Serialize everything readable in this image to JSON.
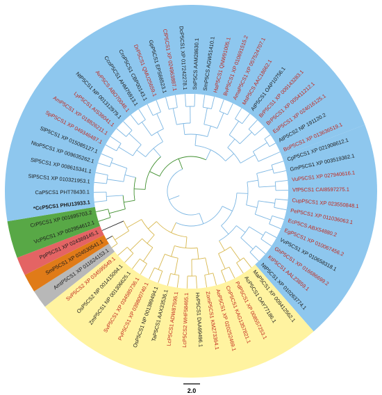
{
  "colors": {
    "blue": "#8ec7ee",
    "green": "#58a846",
    "red": "#e46464",
    "orange": "#e07b18",
    "gray": "#b8b8b8",
    "yellow": "#fff3a0",
    "blue_branch": "#7bb6e3",
    "yellow_branch": "#d8b84e",
    "green_branch": "#3f8f2e",
    "red_label": "#c0281e",
    "black_label": "#1c1c1c"
  },
  "scale_bar": {
    "label": "2.0"
  },
  "leaves": [
    {
      "label": "CpP5CS1 XP 021908612.1",
      "group": "blue",
      "red": false
    },
    {
      "label": "GmP5CS1 XP 003519362.1",
      "group": "blue",
      "red": false
    },
    {
      "label": "VuP5CS1 XP 027940616.1",
      "group": "blue",
      "red": true
    },
    {
      "label": "VfP5CS1 CAI8597275.1",
      "group": "blue",
      "red": true
    },
    {
      "label": "CupP5CS1 XP 023550848.1",
      "group": "blue",
      "red": true
    },
    {
      "label": "PeP5CS1 XP 011036063.1",
      "group": "blue",
      "red": true
    },
    {
      "label": "EcP5CS ABX54880.2",
      "group": "blue",
      "red": true
    },
    {
      "label": "EgP5CS1 XP 010067456.2",
      "group": "blue",
      "red": true
    },
    {
      "label": "VvP5CS1 XP 010658318.1",
      "group": "blue",
      "red": false
    },
    {
      "label": "GhP5CS1 XP 016686699.2",
      "group": "blue",
      "red": true
    },
    {
      "label": "KtP5CS1 AAL23859.1",
      "group": "blue",
      "red": true
    },
    {
      "label": "NtP5CS1 XP 010263774.1",
      "group": "blue",
      "red": false
    },
    {
      "label": "MaP5CS1 XP 009412562.1",
      "group": "yellow",
      "red": false
    },
    {
      "label": "AcP5CS1 OAY77186.1",
      "group": "yellow",
      "red": false
    },
    {
      "label": "PdP5CS1 XP 008557253.1",
      "group": "yellow",
      "red": true
    },
    {
      "label": "CnP5CS1 KAG1357821.1",
      "group": "yellow",
      "red": true
    },
    {
      "label": "AoP5CS1 XP 020252469.1",
      "group": "yellow",
      "red": true
    },
    {
      "label": "ZomP5CS1 KMZ73364.1",
      "group": "yellow",
      "red": true
    },
    {
      "label": "HvP5CS1 DAA99496.1",
      "group": "yellow",
      "red": false
    },
    {
      "label": "LcP5CS2 WHF58465.1",
      "group": "yellow",
      "red": true
    },
    {
      "label": "LcP5CS1 ADW87595.1",
      "group": "yellow",
      "red": true
    },
    {
      "label": "TaP5CS1 AAX33536.1",
      "group": "yellow",
      "red": false
    },
    {
      "label": "OsP5CS1 NP 001389494.1",
      "group": "yellow",
      "red": false
    },
    {
      "label": "PvP5CS1 XP 039800740.1",
      "group": "yellow",
      "red": true
    },
    {
      "label": "SvP5CS1 XP 034585736.1",
      "group": "yellow",
      "red": true
    },
    {
      "label": "ZmP5CS1 NP 001306625.1",
      "group": "yellow",
      "red": false
    },
    {
      "label": "OsP5CS2 NP 001415094.1",
      "group": "yellow",
      "red": false
    },
    {
      "label": "SvP5CS2 XP 034595549.1",
      "group": "yellow",
      "red": true
    },
    {
      "label": "AmtP5CS1 XP 011624153.1",
      "group": "gray",
      "red": false
    },
    {
      "label": "SmP5CS1 XP 024530541.1",
      "group": "orange",
      "red": false
    },
    {
      "label": "PpP5CS1 XP 024369145.1",
      "group": "red",
      "red": false
    },
    {
      "label": "VcP5CS1 XP 002954612.1",
      "group": "green",
      "red": false
    },
    {
      "label": "CrP5CS1 XP 001695703.2",
      "group": "green",
      "red": false
    },
    {
      "label": "*CcP5CS1 PHU13933.1",
      "group": "blue",
      "red": false,
      "bold": true
    },
    {
      "label": "CaP5CS1 PHT78430.1",
      "group": "blue",
      "red": false
    },
    {
      "label": "SlP5CS1 XP 010321953.1",
      "group": "blue",
      "red": false
    },
    {
      "label": "SlP5CS1 XP 008615341.1",
      "group": "blue",
      "red": false
    },
    {
      "label": "NtoP5CS1 XP 009635262.1",
      "group": "blue",
      "red": false
    },
    {
      "label": "SlP5CS1 XP 015085127.1",
      "group": "blue",
      "red": false
    },
    {
      "label": "SpP5CS1 XP 049346487.1",
      "group": "blue",
      "red": true
    },
    {
      "label": "AmP5CS1 XP 018826211.1",
      "group": "blue",
      "red": true
    },
    {
      "label": "LyP5CS1 AIS36041.1",
      "group": "blue",
      "red": true
    },
    {
      "label": "NtP5CS1 NP 001312979.1",
      "group": "blue",
      "red": false
    },
    {
      "label": "AvP5CS ABO70048.1",
      "group": "blue",
      "red": true
    },
    {
      "label": "CcoP5CS1 AHM76913.1",
      "group": "blue",
      "red": false
    },
    {
      "label": "CroP5CS1 CBP00143.1",
      "group": "blue",
      "red": false
    },
    {
      "label": "DrP5CS1 QMU25659.1",
      "group": "blue",
      "red": true
    },
    {
      "label": "GpP5CS1 EPS66523.1",
      "group": "blue",
      "red": false
    },
    {
      "label": "CfP5CS1 XP 024963887.1",
      "group": "blue",
      "red": true
    },
    {
      "label": "DcP5CS1 XP 017242278.1",
      "group": "blue",
      "red": false
    },
    {
      "label": "SsP5CS AAM28630.1",
      "group": "blue",
      "red": false
    },
    {
      "label": "SmP5CS AGW51410.1",
      "group": "blue",
      "red": false
    },
    {
      "label": "HaP5CS1 QNW91005.1",
      "group": "blue",
      "red": true
    },
    {
      "label": "BvP5CS1 XP 010691515.2",
      "group": "blue",
      "red": true
    },
    {
      "label": "AmaP5CS1 XP 057524707.1",
      "group": "blue",
      "red": true
    },
    {
      "label": "MsP5CS AAC18662.1",
      "group": "blue",
      "red": true
    },
    {
      "label": "AtP5CS1 OAP10756.1",
      "group": "blue",
      "red": false
    },
    {
      "label": "BrP5CS1 XP 009143283.1",
      "group": "blue",
      "red": true
    },
    {
      "label": "BrP5CS1 XP 005411212.1",
      "group": "blue",
      "red": true
    },
    {
      "label": "EsP5CS1 XP 024016125.1",
      "group": "blue",
      "red": true
    },
    {
      "label": "AtP5CS2 NP 191120.2",
      "group": "blue",
      "red": false
    },
    {
      "label": "BoP5CS1 XP 013636519.1",
      "group": "blue",
      "red": true
    }
  ]
}
